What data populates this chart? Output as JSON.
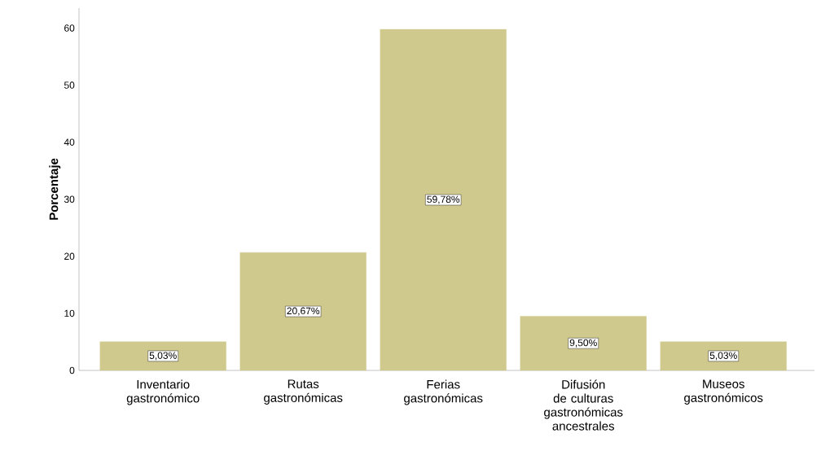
{
  "chart_data": {
    "type": "bar",
    "ylabel": "Porcentaje",
    "categories": [
      "Inventario gastronómico",
      "Rutas gastronómicas",
      "Ferias gastronómicas",
      "Difusión de culturas gastronómicas ancestrales",
      "Museos gastronómicos"
    ],
    "values": [
      5.03,
      20.67,
      59.78,
      9.5,
      5.03
    ],
    "value_labels": [
      "5,03%",
      "20,67%",
      "59,78%",
      "9,50%",
      "5,03%"
    ],
    "color": "#d0c98e",
    "data_labels": true,
    "ylim": [
      0,
      63.5
    ],
    "yticks": [
      0,
      10,
      20,
      30,
      40,
      50,
      60
    ],
    "grid": false
  }
}
